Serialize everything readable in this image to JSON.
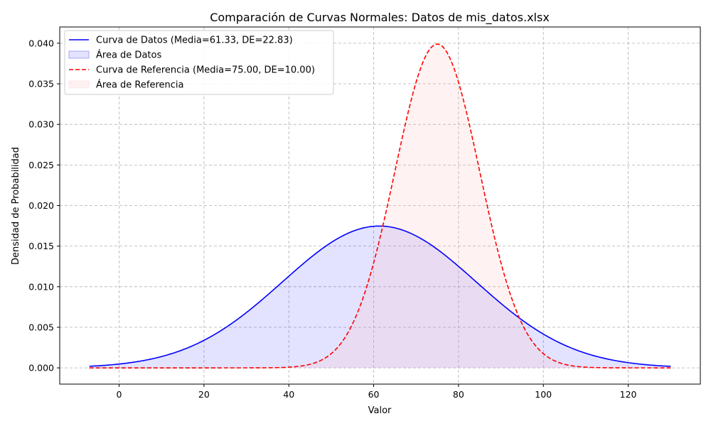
{
  "chart_data": {
    "type": "line",
    "title": "Comparación de Curvas Normales: Datos de mis_datos.xlsx",
    "xlabel": "Valor",
    "ylabel": "Densidad de Probabilidad",
    "xlim": [
      -14,
      137
    ],
    "ylim": [
      -0.002,
      0.042
    ],
    "x_ticks": [
      0,
      20,
      40,
      60,
      80,
      100,
      120
    ],
    "y_ticks": [
      0.0,
      0.005,
      0.01,
      0.015,
      0.02,
      0.025,
      0.03,
      0.035,
      0.04
    ],
    "y_tick_labels": [
      "0.000",
      "0.005",
      "0.010",
      "0.015",
      "0.020",
      "0.025",
      "0.030",
      "0.035",
      "0.040"
    ],
    "grid": true,
    "legend_position": "top-left",
    "series": [
      {
        "name": "Curva de Datos (Media=61.33, DE=22.83)",
        "area_name": "Área de Datos",
        "mean": 61.33,
        "sd": 22.83,
        "x_range": [
          -7,
          130
        ],
        "color": "#0000ff",
        "fill_color": "#0000ff",
        "line_style": "solid"
      },
      {
        "name": "Curva de Referencia (Media=75.00, DE=10.00)",
        "area_name": "Área de Referencia",
        "mean": 75.0,
        "sd": 10.0,
        "x_range": [
          -7,
          130
        ],
        "color": "#ff0000",
        "fill_color": "#ffc0c0",
        "line_style": "dashed"
      }
    ]
  }
}
